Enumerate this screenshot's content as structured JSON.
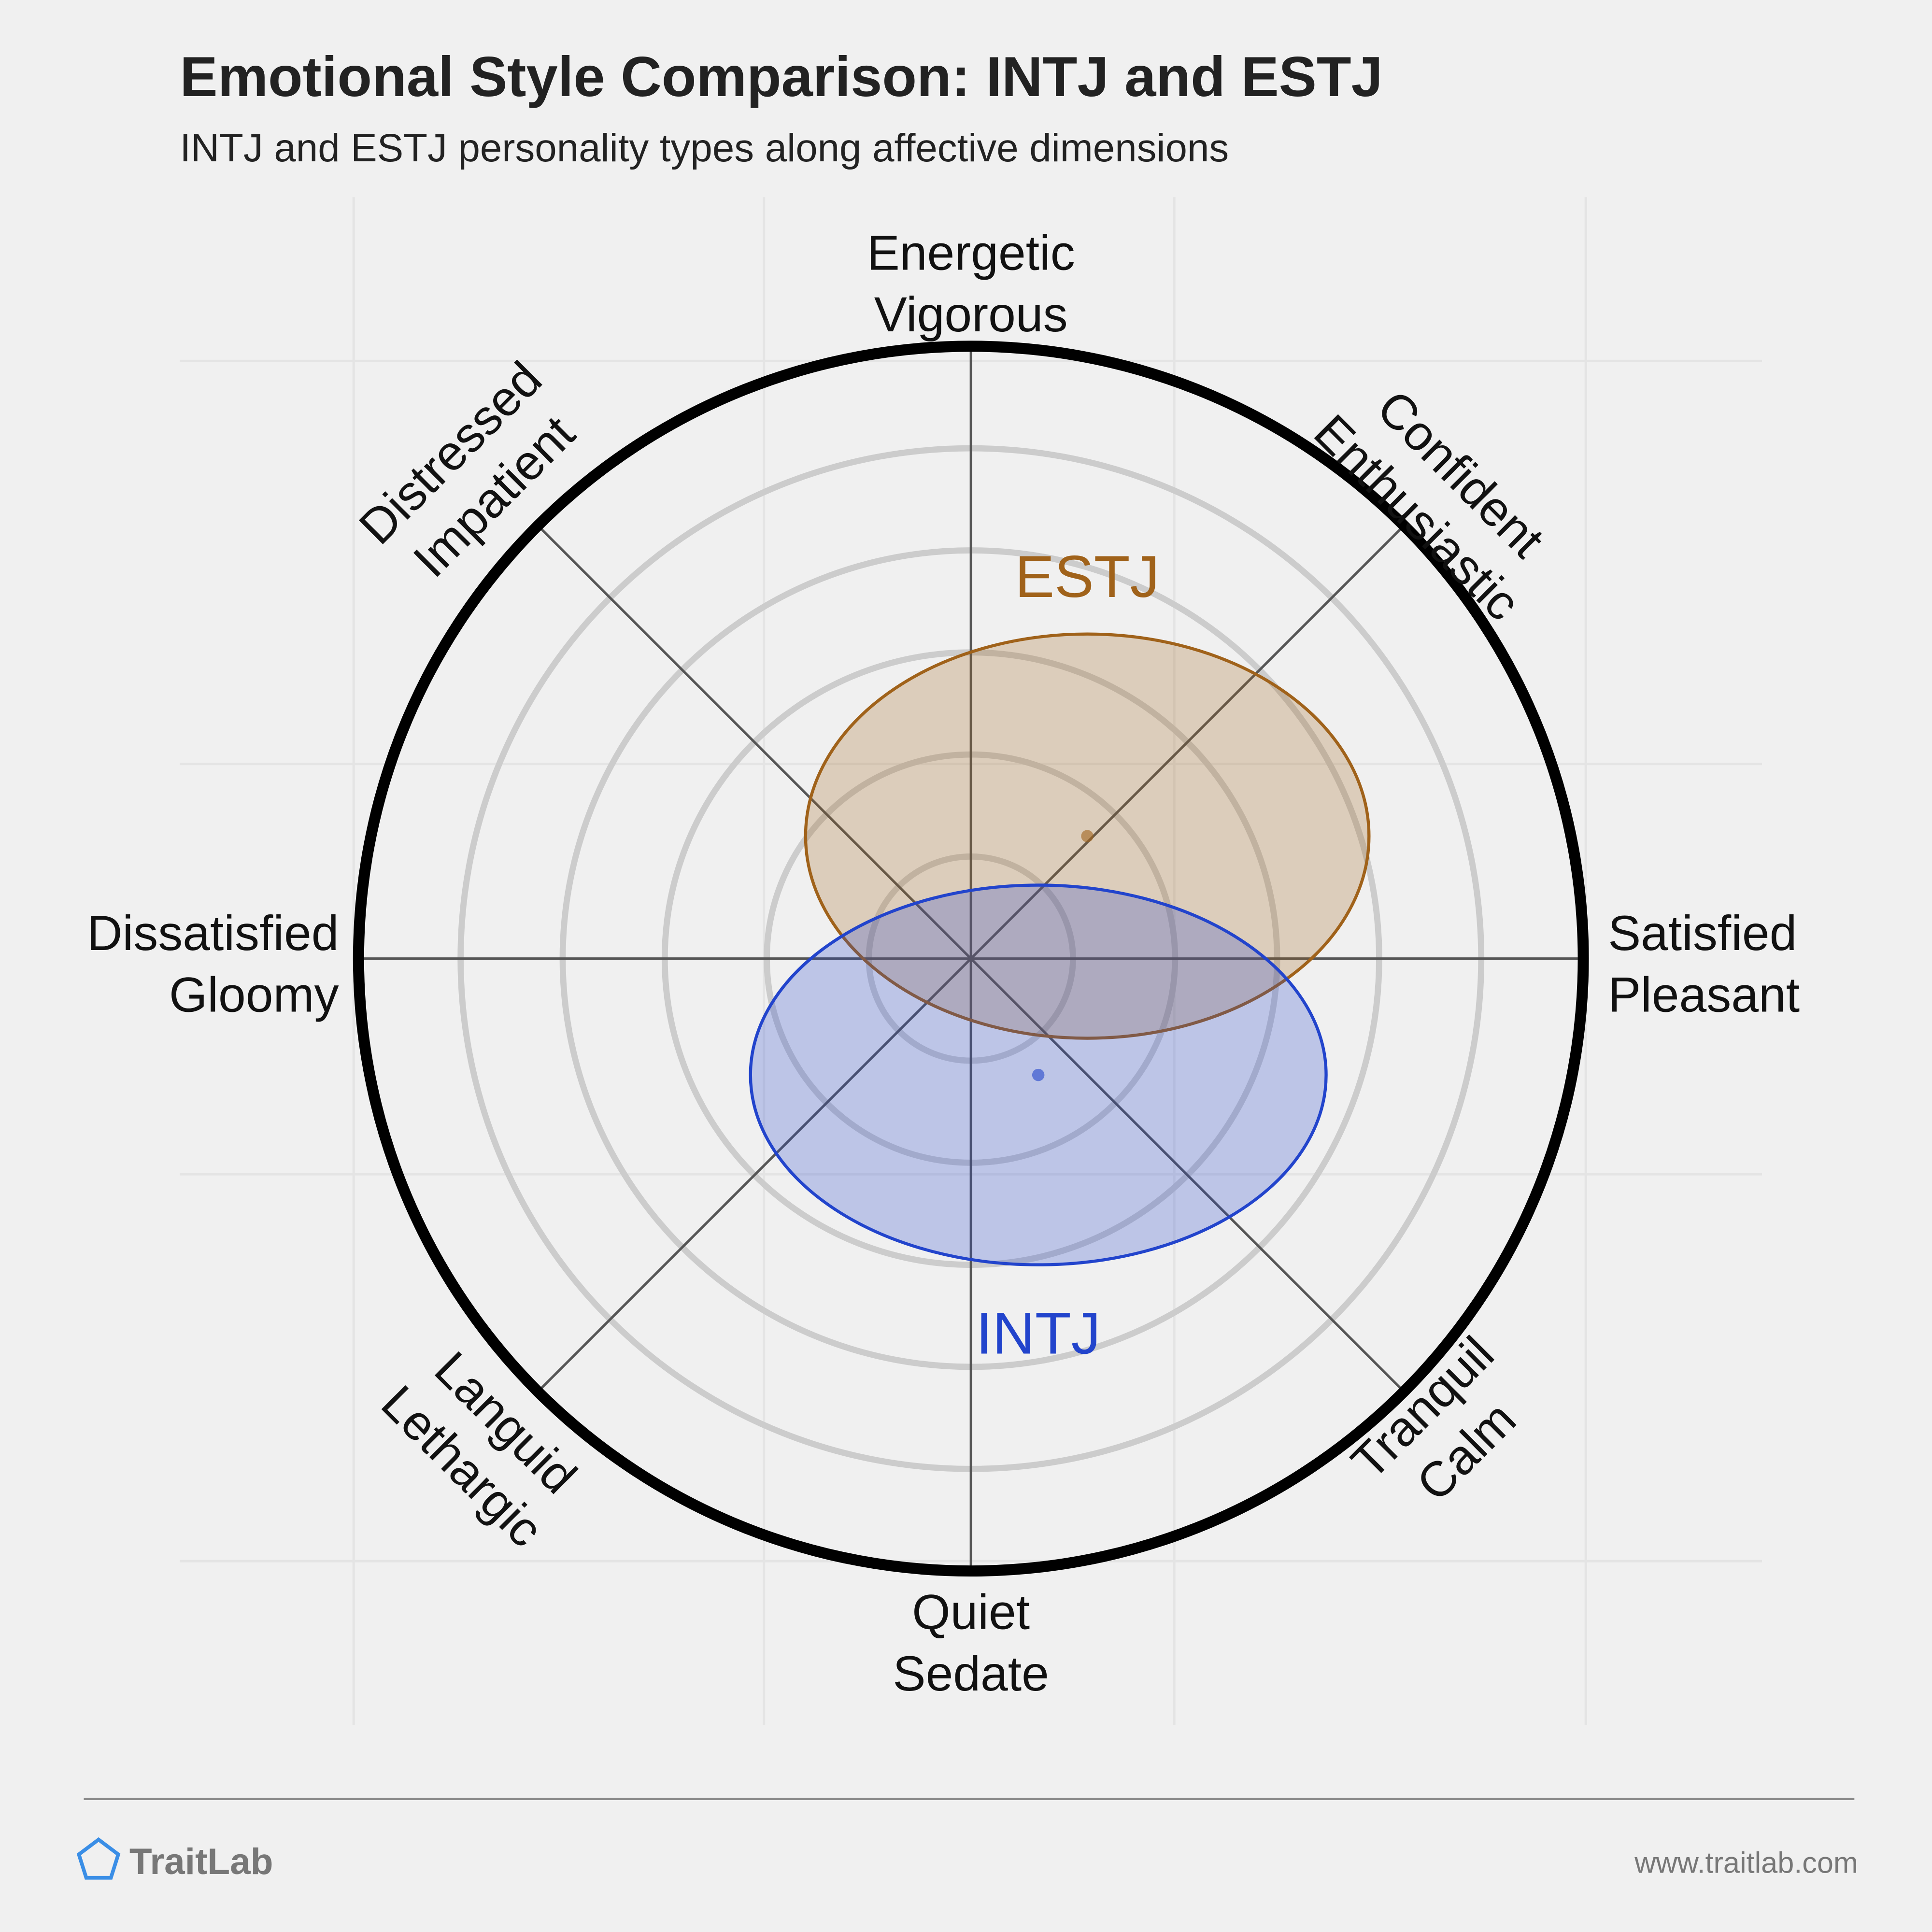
{
  "chart_data": {
    "type": "ellipse",
    "title": "Emotional Style Comparison: INTJ and ESTJ",
    "subtitle": "INTJ and ESTJ personality types along affective dimensions",
    "xlim": [
      -1,
      1
    ],
    "ylim": [
      -1,
      1
    ],
    "axis_labels": [
      [
        "Energetic",
        "Vigorous"
      ],
      [
        "Confident",
        "Enthusiastic"
      ],
      [
        "Satisfied",
        "Pleasant"
      ],
      [
        "Tranquil",
        "Calm"
      ],
      [
        "Quiet",
        "Sedate"
      ],
      [
        "Languid",
        "Lethargic"
      ],
      [
        "Dissatisfied",
        "Gloomy"
      ],
      [
        "Distressed",
        "Impatient"
      ]
    ],
    "series": [
      {
        "name": "ESTJ",
        "color": "#a0621a",
        "x": 0.19,
        "y": 0.2,
        "rx": 0.46,
        "ry": 0.33
      },
      {
        "name": "INTJ",
        "color": "#2244cc",
        "x": 0.11,
        "y": -0.19,
        "rx": 0.47,
        "ry": 0.31
      }
    ]
  },
  "footer": {
    "brand": "TraitLab",
    "url": "www.traitlab.com"
  }
}
